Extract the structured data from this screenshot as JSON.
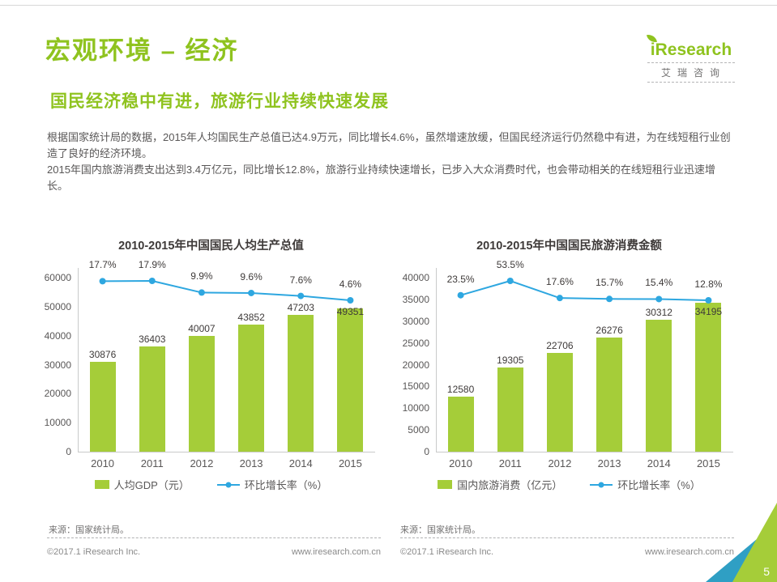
{
  "page": {
    "title": "宏观环境 – 经济",
    "subtitle": "国民经济稳中有进，旅游行业持续快速发展",
    "paragraphs": [
      "根据国家统计局的数据，2015年人均国民生产总值已达4.9万元，同比增长4.6%，虽然增速放缓，但国民经济运行仍然稳中有进，为在线短租行业创造了良好的经济环境。",
      "2015年国内旅游消费支出达到3.4万亿元，同比增长12.8%，旅游行业持续快速增长，已步入大众消费时代，也会带动相关的在线短租行业迅速增长。"
    ],
    "page_number": "5"
  },
  "logo": {
    "name": "iResearch",
    "cn": "艾瑞咨询"
  },
  "footer": {
    "copyright": "©2017.1 iResearch Inc.",
    "site": "www.iresearch.com.cn"
  },
  "colors": {
    "accent_green": "#8fc31f",
    "bar_green": "#a5cd39",
    "line_blue": "#2ea7e0",
    "corner_teal": "#2f9fc4",
    "text_dark": "#3e3a39",
    "text_gray": "#898989"
  },
  "chart_data": [
    {
      "type": "bar",
      "title": "2010-2015年中国国民人均生产总值",
      "categories": [
        "2010",
        "2011",
        "2012",
        "2013",
        "2014",
        "2015"
      ],
      "series": [
        {
          "name": "人均GDP（元）",
          "kind": "bar",
          "values": [
            30876,
            36403,
            40007,
            43852,
            47203,
            49351
          ],
          "color": "#a5cd39"
        },
        {
          "name": "环比增长率（%）",
          "kind": "line",
          "values": [
            17.7,
            17.9,
            9.9,
            9.6,
            7.6,
            4.6
          ],
          "labels": [
            "17.7%",
            "17.9%",
            "9.9%",
            "9.6%",
            "7.6%",
            "4.6%"
          ],
          "color": "#2ea7e0"
        }
      ],
      "xlabel": "",
      "ylabel": "",
      "ylim": [
        0,
        60000
      ],
      "ytick_step": 10000,
      "grid": false,
      "legend_position": "bottom",
      "source": "来源：国家统计局。"
    },
    {
      "type": "bar",
      "title": "2010-2015年中国国民旅游消费金额",
      "categories": [
        "2010",
        "2011",
        "2012",
        "2013",
        "2014",
        "2015"
      ],
      "series": [
        {
          "name": "国内旅游消费（亿元）",
          "kind": "bar",
          "values": [
            12580,
            19305,
            22706,
            26276,
            30312,
            34195
          ],
          "color": "#a5cd39"
        },
        {
          "name": "环比增长率（%）",
          "kind": "line",
          "values": [
            23.5,
            53.5,
            17.6,
            15.7,
            15.4,
            12.8
          ],
          "labels": [
            "23.5%",
            "53.5%",
            "17.6%",
            "15.7%",
            "15.4%",
            "12.8%"
          ],
          "color": "#2ea7e0"
        }
      ],
      "xlabel": "",
      "ylabel": "",
      "ylim": [
        0,
        40000
      ],
      "ytick_step": 5000,
      "grid": false,
      "legend_position": "bottom",
      "source": "来源：国家统计局。"
    }
  ]
}
